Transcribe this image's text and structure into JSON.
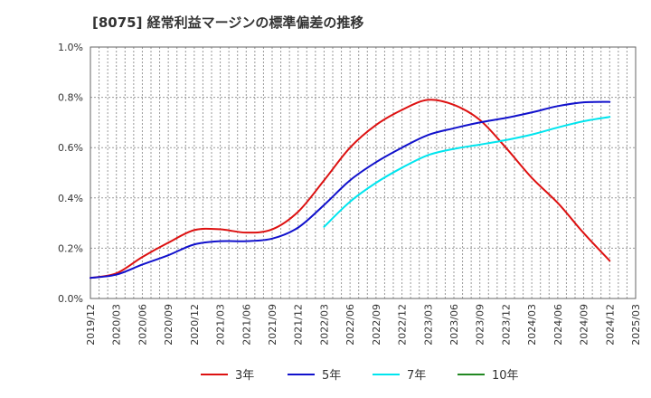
{
  "chart_data": {
    "type": "line",
    "title": "[8075]  経常利益マージンの標準偏差の推移",
    "xlabel": "",
    "ylabel": "",
    "ylim": [
      0,
      1.0
    ],
    "y_unit": "%",
    "yticks": [
      "0.0%",
      "0.2%",
      "0.4%",
      "0.6%",
      "0.8%",
      "1.0%"
    ],
    "x_range": [
      "2019/12",
      "2025/03"
    ],
    "xticks": [
      "2019/12",
      "2020/03",
      "2020/06",
      "2020/09",
      "2020/12",
      "2021/03",
      "2021/06",
      "2021/09",
      "2021/12",
      "2022/03",
      "2022/06",
      "2022/09",
      "2022/12",
      "2023/03",
      "2023/06",
      "2023/09",
      "2023/12",
      "2024/03",
      "2024/06",
      "2024/09",
      "2024/12",
      "2025/03"
    ],
    "grid": true,
    "legend_position": "bottom",
    "series": [
      {
        "name": "3年",
        "color": "#dd1111",
        "points": [
          [
            "2019/12",
            0.082
          ],
          [
            "2020/03",
            0.1
          ],
          [
            "2020/06",
            0.165
          ],
          [
            "2020/09",
            0.222
          ],
          [
            "2020/12",
            0.272
          ],
          [
            "2021/03",
            0.275
          ],
          [
            "2021/06",
            0.262
          ],
          [
            "2021/09",
            0.275
          ],
          [
            "2021/12",
            0.345
          ],
          [
            "2022/03",
            0.47
          ],
          [
            "2022/06",
            0.6
          ],
          [
            "2022/09",
            0.69
          ],
          [
            "2022/12",
            0.75
          ],
          [
            "2023/03",
            0.79
          ],
          [
            "2023/06",
            0.77
          ],
          [
            "2023/09",
            0.71
          ],
          [
            "2023/12",
            0.6
          ],
          [
            "2024/03",
            0.48
          ],
          [
            "2024/06",
            0.38
          ],
          [
            "2024/09",
            0.26
          ],
          [
            "2024/12",
            0.15
          ]
        ]
      },
      {
        "name": "5年",
        "color": "#1111cc",
        "points": [
          [
            "2019/12",
            0.082
          ],
          [
            "2020/03",
            0.095
          ],
          [
            "2020/06",
            0.135
          ],
          [
            "2020/09",
            0.172
          ],
          [
            "2020/12",
            0.215
          ],
          [
            "2021/03",
            0.228
          ],
          [
            "2021/06",
            0.228
          ],
          [
            "2021/09",
            0.238
          ],
          [
            "2021/12",
            0.282
          ],
          [
            "2022/03",
            0.372
          ],
          [
            "2022/06",
            0.47
          ],
          [
            "2022/09",
            0.542
          ],
          [
            "2022/12",
            0.6
          ],
          [
            "2023/03",
            0.65
          ],
          [
            "2023/06",
            0.677
          ],
          [
            "2023/09",
            0.7
          ],
          [
            "2023/12",
            0.718
          ],
          [
            "2024/03",
            0.74
          ],
          [
            "2024/06",
            0.765
          ],
          [
            "2024/09",
            0.78
          ],
          [
            "2024/12",
            0.782
          ]
        ]
      },
      {
        "name": "7年",
        "color": "#00e5ee",
        "points": [
          [
            "2022/03",
            0.285
          ],
          [
            "2022/06",
            0.385
          ],
          [
            "2022/09",
            0.46
          ],
          [
            "2022/12",
            0.52
          ],
          [
            "2023/03",
            0.57
          ],
          [
            "2023/06",
            0.595
          ],
          [
            "2023/09",
            0.612
          ],
          [
            "2023/12",
            0.63
          ],
          [
            "2024/03",
            0.652
          ],
          [
            "2024/06",
            0.68
          ],
          [
            "2024/09",
            0.705
          ],
          [
            "2024/12",
            0.722
          ]
        ]
      },
      {
        "name": "10年",
        "color": "#228822",
        "points": []
      }
    ]
  }
}
